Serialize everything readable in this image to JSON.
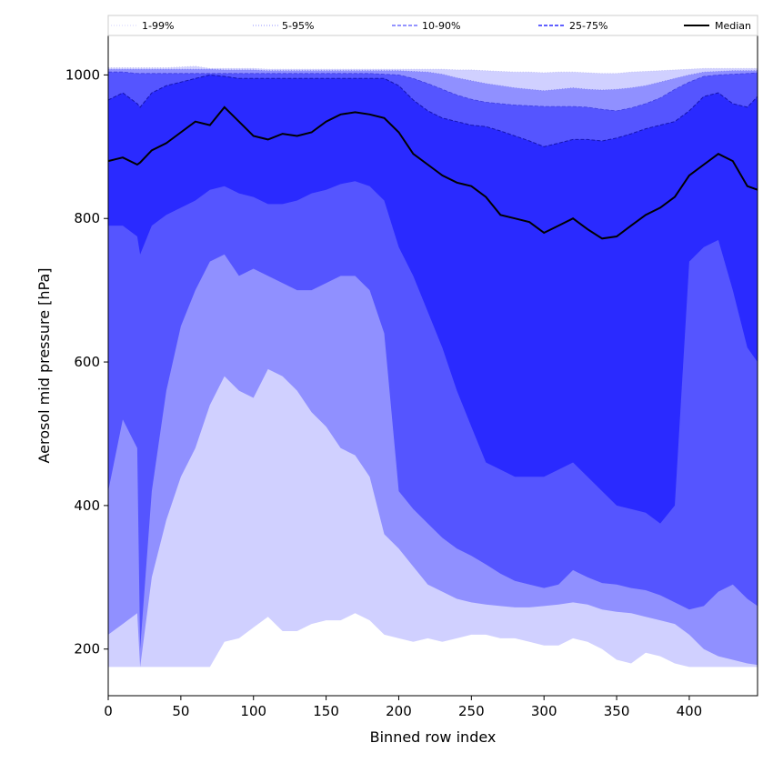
{
  "chart_data": {
    "type": "area",
    "xlabel": "Binned row index",
    "ylabel": "Aerosol mid pressure [hPa]",
    "xlim": [
      0,
      447
    ],
    "ylim": [
      135,
      1055
    ],
    "x_ticks": [
      "0",
      "50",
      "100",
      "150",
      "200",
      "250",
      "300",
      "350",
      "400"
    ],
    "y_ticks": [
      "200",
      "400",
      "600",
      "800",
      "1000"
    ],
    "grid": false,
    "legend_position": "top",
    "legend": [
      {
        "label": "1-99%",
        "color": "#d0d0ff",
        "style": "dotted"
      },
      {
        "label": "5-95%",
        "color": "#9090ff",
        "style": "dotted"
      },
      {
        "label": "10-90%",
        "color": "#5555ff",
        "style": "dashed"
      },
      {
        "label": "25-75%",
        "color": "#2a2aff",
        "style": "dashed"
      },
      {
        "label": "Median",
        "color": "#000000",
        "style": "solid"
      }
    ],
    "x": [
      0,
      10,
      20,
      22,
      30,
      40,
      50,
      60,
      70,
      80,
      90,
      100,
      110,
      120,
      130,
      140,
      150,
      160,
      170,
      180,
      190,
      200,
      210,
      220,
      230,
      240,
      250,
      260,
      270,
      280,
      290,
      300,
      310,
      320,
      330,
      340,
      350,
      360,
      370,
      380,
      390,
      400,
      410,
      420,
      430,
      440,
      447
    ],
    "bands": [
      {
        "name": "1-99%",
        "color": "#d0d0ff",
        "lower": [
          175,
          175,
          175,
          175,
          175,
          175,
          175,
          175,
          175,
          210,
          215,
          230,
          245,
          225,
          225,
          235,
          240,
          240,
          250,
          240,
          220,
          215,
          210,
          215,
          210,
          215,
          220,
          220,
          215,
          215,
          210,
          205,
          205,
          215,
          210,
          200,
          185,
          180,
          195,
          190,
          180,
          175,
          175,
          175,
          175,
          175,
          175
        ],
        "upper": [
          1010,
          1010,
          1010,
          1010,
          1010,
          1010,
          1011,
          1012,
          1009,
          1009,
          1009,
          1009,
          1008,
          1008,
          1008,
          1008,
          1008,
          1008,
          1008,
          1008,
          1008,
          1008,
          1008,
          1008,
          1008,
          1007,
          1007,
          1006,
          1005,
          1004,
          1004,
          1003,
          1004,
          1004,
          1003,
          1002,
          1002,
          1004,
          1005,
          1006,
          1007,
          1008,
          1009,
          1009,
          1009,
          1009,
          1009
        ]
      },
      {
        "name": "5-95%",
        "color": "#9090ff",
        "lower": [
          220,
          235,
          250,
          175,
          300,
          380,
          440,
          480,
          540,
          580,
          560,
          550,
          590,
          580,
          560,
          530,
          510,
          480,
          470,
          440,
          360,
          340,
          315,
          290,
          280,
          270,
          265,
          262,
          260,
          258,
          258,
          260,
          262,
          265,
          262,
          255,
          252,
          250,
          245,
          240,
          235,
          220,
          200,
          190,
          185,
          180,
          178
        ],
        "upper": [
          1008,
          1008,
          1008,
          1008,
          1008,
          1008,
          1008,
          1008,
          1008,
          1007,
          1007,
          1007,
          1006,
          1006,
          1006,
          1006,
          1006,
          1006,
          1006,
          1006,
          1006,
          1006,
          1005,
          1004,
          1001,
          996,
          992,
          988,
          985,
          982,
          980,
          978,
          980,
          982,
          980,
          979,
          980,
          982,
          985,
          990,
          995,
          1000,
          1004,
          1005,
          1006,
          1006,
          1006
        ]
      },
      {
        "name": "10-90%",
        "color": "#5555ff",
        "lower": [
          420,
          520,
          480,
          200,
          420,
          560,
          650,
          700,
          740,
          750,
          720,
          730,
          720,
          710,
          700,
          700,
          710,
          720,
          720,
          700,
          640,
          420,
          395,
          375,
          355,
          340,
          330,
          318,
          305,
          295,
          290,
          285,
          290,
          310,
          300,
          292,
          290,
          285,
          282,
          275,
          265,
          255,
          260,
          280,
          290,
          270,
          260
        ],
        "upper": [
          1004,
          1004,
          1002,
          1002,
          1002,
          1002,
          1002,
          1002,
          1002,
          1002,
          1002,
          1002,
          1002,
          1002,
          1002,
          1002,
          1002,
          1002,
          1002,
          1002,
          1001,
          1000,
          995,
          988,
          980,
          972,
          966,
          962,
          960,
          958,
          957,
          956,
          956,
          956,
          955,
          952,
          950,
          954,
          960,
          968,
          980,
          990,
          998,
          1000,
          1001,
          1002,
          1003
        ]
      },
      {
        "name": "25-75%",
        "color": "#2a2aff",
        "lower": [
          790,
          790,
          775,
          750,
          790,
          805,
          815,
          825,
          840,
          845,
          835,
          830,
          820,
          820,
          825,
          835,
          840,
          848,
          852,
          845,
          825,
          760,
          720,
          670,
          620,
          560,
          510,
          460,
          450,
          440,
          440,
          440,
          450,
          460,
          440,
          420,
          400,
          395,
          390,
          375,
          400,
          740,
          760,
          770,
          700,
          620,
          600
        ],
        "upper": [
          965,
          975,
          960,
          955,
          975,
          985,
          990,
          995,
          1000,
          998,
          995,
          995,
          995,
          995,
          995,
          995,
          995,
          995,
          995,
          995,
          995,
          985,
          965,
          950,
          940,
          935,
          930,
          928,
          922,
          915,
          908,
          900,
          905,
          910,
          910,
          908,
          912,
          918,
          925,
          930,
          935,
          950,
          970,
          975,
          960,
          955,
          970
        ]
      }
    ],
    "median": [
      880,
      885,
      875,
      878,
      895,
      905,
      920,
      935,
      930,
      955,
      935,
      915,
      910,
      918,
      915,
      920,
      935,
      945,
      948,
      945,
      940,
      920,
      890,
      875,
      860,
      850,
      845,
      830,
      805,
      800,
      795,
      780,
      790,
      800,
      785,
      772,
      775,
      790,
      805,
      815,
      830,
      860,
      875,
      890,
      880,
      845,
      840
    ]
  }
}
